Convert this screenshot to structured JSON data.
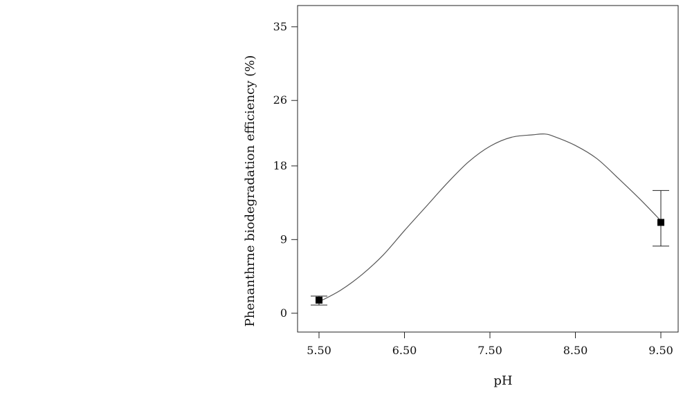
{
  "chart_data": {
    "type": "line",
    "title": "",
    "xlabel": "pH",
    "ylabel": "Phenanthrne biodegradation efficiency (%)",
    "xlim": [
      5.5,
      9.5
    ],
    "ylim": [
      -2.3,
      37.6
    ],
    "x_ticks": [
      "5.50",
      "6.50",
      "7.50",
      "8.50",
      "9.50"
    ],
    "y_ticks": [
      "0",
      "9",
      "18",
      "26",
      "35"
    ],
    "grid": false,
    "legend": "none",
    "series": [
      {
        "type": "line",
        "x": [
          5.5,
          5.75,
          6.0,
          6.25,
          6.5,
          6.75,
          7.0,
          7.25,
          7.5,
          7.75,
          8.0,
          8.14,
          8.25,
          8.5,
          8.75,
          9.0,
          9.25,
          9.5
        ],
        "y": [
          1.4,
          2.8,
          4.7,
          7.1,
          10.1,
          13.0,
          15.9,
          18.5,
          20.4,
          21.5,
          21.8,
          21.9,
          21.6,
          20.5,
          18.9,
          16.5,
          14.0,
          11.3
        ]
      }
    ],
    "points": [
      {
        "x": 5.5,
        "y": 1.6,
        "err_low": 1.0,
        "err_high": 2.1
      },
      {
        "x": 9.5,
        "y": 11.1,
        "err_low": 8.2,
        "err_high": 15.0
      }
    ],
    "colors": {
      "line": "#555555",
      "axis": "#222222",
      "marker": "#000000"
    }
  }
}
